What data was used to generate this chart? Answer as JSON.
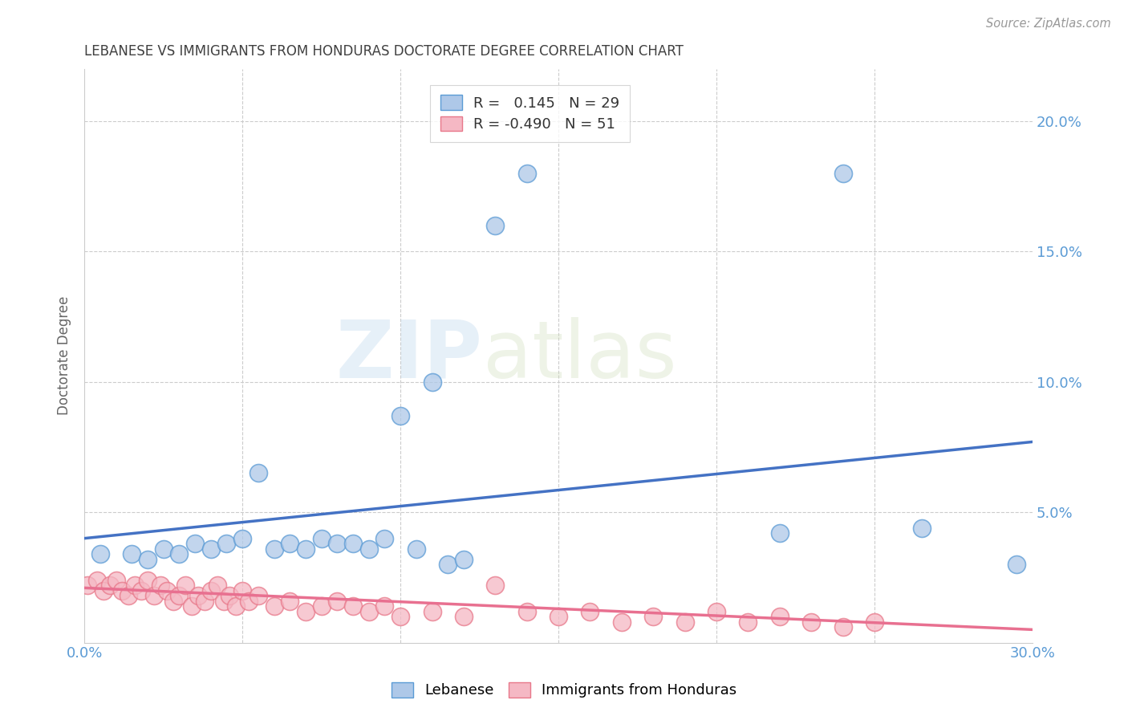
{
  "title": "LEBANESE VS IMMIGRANTS FROM HONDURAS DOCTORATE DEGREE CORRELATION CHART",
  "source": "Source: ZipAtlas.com",
  "ylabel_label": "Doctorate Degree",
  "xlim": [
    0.0,
    0.3
  ],
  "ylim": [
    0.0,
    0.22
  ],
  "xticks": [
    0.0,
    0.05,
    0.1,
    0.15,
    0.2,
    0.25,
    0.3
  ],
  "xtick_labels": [
    "0.0%",
    "",
    "",
    "",
    "",
    "",
    "30.0%"
  ],
  "yticks": [
    0.0,
    0.05,
    0.1,
    0.15,
    0.2
  ],
  "right_ytick_labels": [
    "",
    "5.0%",
    "10.0%",
    "15.0%",
    "20.0%"
  ],
  "legend_labels": [
    "Lebanese",
    "Immigrants from Honduras"
  ],
  "blue_R": 0.145,
  "blue_N": 29,
  "pink_R": -0.49,
  "pink_N": 51,
  "blue_color": "#aec8e8",
  "pink_color": "#f5b8c4",
  "blue_edge_color": "#5b9bd5",
  "pink_edge_color": "#e8788a",
  "blue_line_color": "#4472c4",
  "pink_line_color": "#e87090",
  "watermark_zip": "ZIP",
  "watermark_atlas": "atlas",
  "background_color": "#ffffff",
  "grid_color": "#cccccc",
  "title_color": "#404040",
  "axis_label_color": "#5b9bd5",
  "blue_scatter_x": [
    0.005,
    0.015,
    0.02,
    0.025,
    0.03,
    0.035,
    0.04,
    0.045,
    0.05,
    0.055,
    0.06,
    0.065,
    0.07,
    0.075,
    0.08,
    0.085,
    0.09,
    0.095,
    0.1,
    0.105,
    0.11,
    0.115,
    0.12,
    0.13,
    0.14,
    0.22,
    0.24,
    0.265,
    0.295
  ],
  "blue_scatter_y": [
    0.034,
    0.034,
    0.032,
    0.036,
    0.034,
    0.038,
    0.036,
    0.038,
    0.04,
    0.065,
    0.036,
    0.038,
    0.036,
    0.04,
    0.038,
    0.038,
    0.036,
    0.04,
    0.087,
    0.036,
    0.1,
    0.03,
    0.032,
    0.16,
    0.18,
    0.042,
    0.18,
    0.044,
    0.03
  ],
  "pink_scatter_x": [
    0.001,
    0.004,
    0.006,
    0.008,
    0.01,
    0.012,
    0.014,
    0.016,
    0.018,
    0.02,
    0.022,
    0.024,
    0.026,
    0.028,
    0.03,
    0.032,
    0.034,
    0.036,
    0.038,
    0.04,
    0.042,
    0.044,
    0.046,
    0.048,
    0.05,
    0.052,
    0.055,
    0.06,
    0.065,
    0.07,
    0.075,
    0.08,
    0.085,
    0.09,
    0.095,
    0.1,
    0.11,
    0.12,
    0.13,
    0.14,
    0.15,
    0.16,
    0.17,
    0.18,
    0.19,
    0.2,
    0.21,
    0.22,
    0.23,
    0.24,
    0.25
  ],
  "pink_scatter_y": [
    0.022,
    0.024,
    0.02,
    0.022,
    0.024,
    0.02,
    0.018,
    0.022,
    0.02,
    0.024,
    0.018,
    0.022,
    0.02,
    0.016,
    0.018,
    0.022,
    0.014,
    0.018,
    0.016,
    0.02,
    0.022,
    0.016,
    0.018,
    0.014,
    0.02,
    0.016,
    0.018,
    0.014,
    0.016,
    0.012,
    0.014,
    0.016,
    0.014,
    0.012,
    0.014,
    0.01,
    0.012,
    0.01,
    0.022,
    0.012,
    0.01,
    0.012,
    0.008,
    0.01,
    0.008,
    0.012,
    0.008,
    0.01,
    0.008,
    0.006,
    0.008
  ],
  "blue_trend_x": [
    0.0,
    0.3
  ],
  "blue_trend_y": [
    0.04,
    0.077
  ],
  "pink_trend_x": [
    0.0,
    0.3
  ],
  "pink_trend_y": [
    0.021,
    0.005
  ]
}
